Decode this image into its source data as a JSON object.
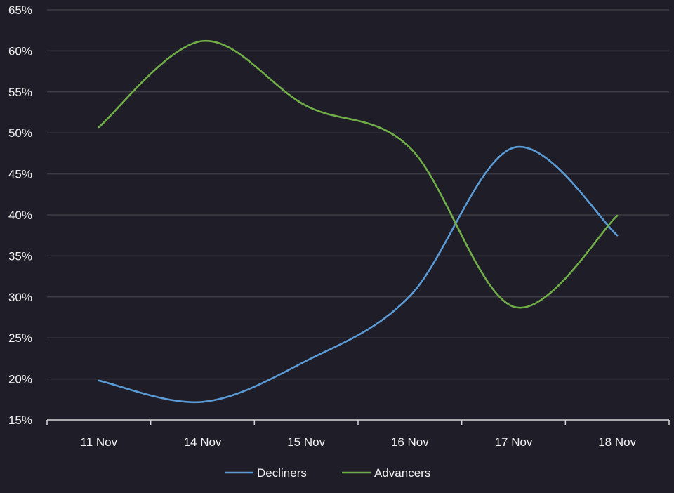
{
  "chart_data": {
    "type": "line",
    "title": "",
    "xlabel": "",
    "ylabel": "",
    "categories": [
      "11 Nov",
      "14 Nov",
      "15 Nov",
      "16 Nov",
      "17 Nov",
      "18 Nov"
    ],
    "ylim": [
      15,
      65
    ],
    "yticks": [
      15,
      20,
      25,
      30,
      35,
      40,
      45,
      50,
      55,
      60,
      65
    ],
    "ytick_labels": [
      "15%",
      "20%",
      "25%",
      "30%",
      "35%",
      "40%",
      "45%",
      "50%",
      "55%",
      "60%",
      "65%"
    ],
    "grid": true,
    "legend_position": "bottom",
    "series": [
      {
        "name": "Decliners",
        "color": "#5b9bd5",
        "values": [
          19.8,
          17.2,
          22.2,
          30.1,
          48.2,
          37.5
        ]
      },
      {
        "name": "Advancers",
        "color": "#70ad47",
        "values": [
          50.7,
          61.2,
          53.3,
          48.2,
          28.8,
          39.9
        ]
      }
    ]
  }
}
